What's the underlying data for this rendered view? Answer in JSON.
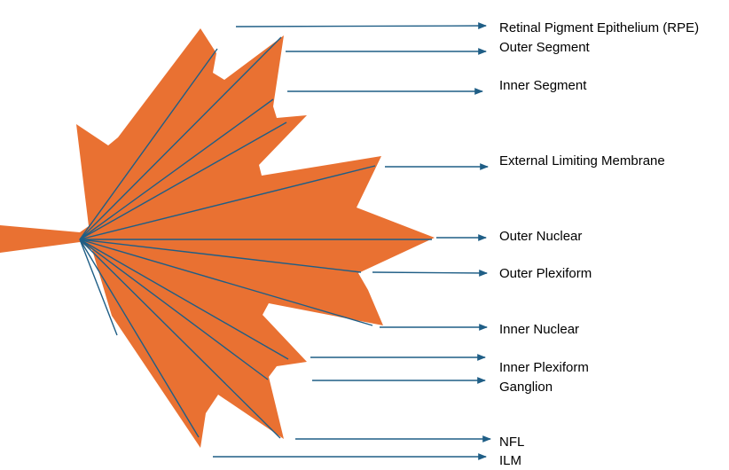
{
  "colors": {
    "leaf": "#E97132",
    "lines": "#1F5E86",
    "text": "#000000"
  },
  "labels": [
    {
      "id": "rpe",
      "text": "Retinal Pigment Epithelium (RPE)"
    },
    {
      "id": "outer-segment",
      "text": "Outer Segment"
    },
    {
      "id": "inner-segment",
      "text": "Inner Segment"
    },
    {
      "id": "external-limiting-membrane",
      "text": "External Limiting Membrane"
    },
    {
      "id": "outer-nuclear",
      "text": "Outer Nuclear"
    },
    {
      "id": "outer-plexiform",
      "text": "Outer Plexiform"
    },
    {
      "id": "inner-nuclear",
      "text": "Inner Nuclear"
    },
    {
      "id": "inner-plexiform",
      "text": "Inner Plexiform"
    },
    {
      "id": "ganglion",
      "text": "Ganglion"
    },
    {
      "id": "nfl",
      "text": "NFL"
    },
    {
      "id": "ilm",
      "text": "ILM"
    }
  ]
}
